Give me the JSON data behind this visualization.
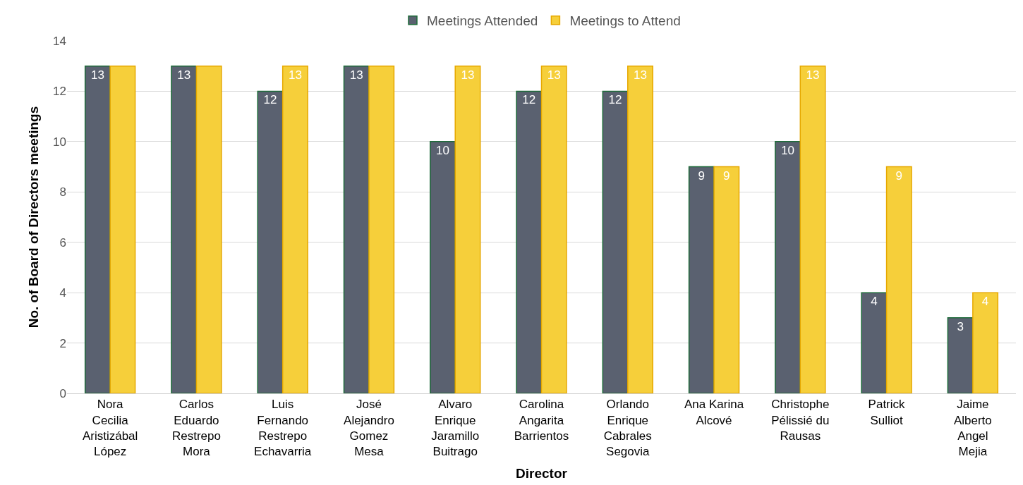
{
  "chart_data": {
    "type": "bar",
    "xlabel": "Director",
    "ylabel": "No. of Board of Directors meetings",
    "categories": [
      "Nora\nCecilia\nAristizábal\nLópez",
      "Carlos\nEduardo\nRestrepo\nMora",
      "Luis\nFernando\nRestrepo\nEchavarria",
      "José\nAlejandro\nGomez\nMesa",
      "Alvaro\nEnrique\nJaramillo\nBuitrago",
      "Carolina\nAngarita\nBarrientos",
      "Orlando\nEnrique\nCabrales\nSegovia",
      "Ana Karina\nAlcové",
      "Christophe\nPélissié du\nRausas",
      "Patrick\nSulliot",
      "Jaime\nAlberto\nAngel\nMejia"
    ],
    "series": [
      {
        "name": "Meetings Attended",
        "color": "#5a6170",
        "values": [
          13,
          13,
          12,
          13,
          10,
          12,
          12,
          9,
          10,
          4,
          3
        ],
        "value_labels": [
          "13",
          "13",
          "12",
          "13",
          "10",
          "12",
          "12",
          "9",
          "10",
          "4",
          "3"
        ]
      },
      {
        "name": "Meetings to Attend",
        "color": "#f6cf3a",
        "values": [
          13,
          13,
          13,
          13,
          13,
          13,
          13,
          9,
          13,
          9,
          4
        ],
        "value_labels": [
          null,
          null,
          "13",
          null,
          "13",
          "13",
          "13",
          "9",
          "13",
          "9",
          "4"
        ]
      }
    ],
    "ylim": [
      0,
      14
    ],
    "yticks": [
      0,
      2,
      4,
      6,
      8,
      10,
      12,
      14
    ],
    "grid": "y",
    "legend": "top"
  }
}
